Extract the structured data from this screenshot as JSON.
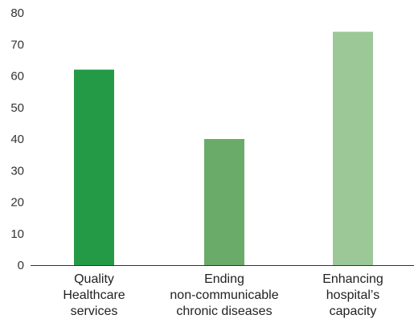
{
  "chart_data": {
    "type": "bar",
    "categories": [
      [
        "Quality",
        "Healthcare",
        "services"
      ],
      [
        "Ending",
        "non-communicable",
        "chronic diseases"
      ],
      [
        "Enhancing",
        "hospital’s",
        "capacity"
      ]
    ],
    "values": [
      62,
      40,
      74
    ],
    "colors": [
      "#249a46",
      "#6aab6a",
      "#9cc797"
    ],
    "ylim": [
      0,
      80
    ],
    "yticks": [
      0,
      10,
      20,
      30,
      40,
      50,
      60,
      70,
      80
    ],
    "title": "",
    "xlabel": "",
    "ylabel": "",
    "grid": false,
    "legend": "none"
  }
}
